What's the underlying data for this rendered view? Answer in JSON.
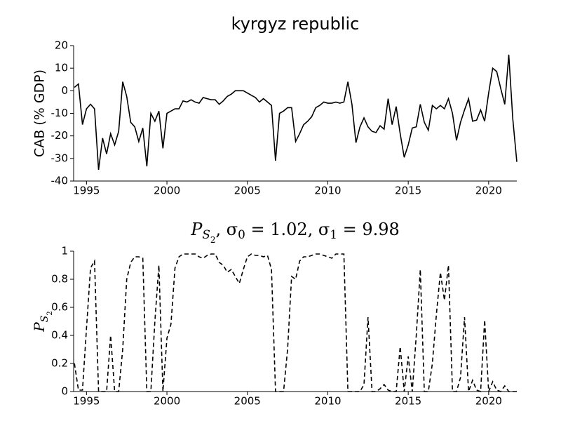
{
  "chart_data": [
    {
      "type": "line",
      "title": "kyrgyz republic",
      "ylabel": "CAB (% GDP)",
      "color": "#000000",
      "dashed": false,
      "x": [
        1994.25,
        1994.5,
        1994.75,
        1995,
        1995.25,
        1995.5,
        1995.75,
        1996,
        1996.25,
        1996.5,
        1996.75,
        1997,
        1997.25,
        1997.5,
        1997.75,
        1998,
        1998.25,
        1998.5,
        1998.75,
        1999,
        1999.25,
        1999.5,
        1999.75,
        2000,
        2000.25,
        2000.5,
        2000.75,
        2001,
        2001.25,
        2001.5,
        2001.75,
        2002,
        2002.25,
        2002.5,
        2002.75,
        2003,
        2003.25,
        2003.5,
        2003.75,
        2004,
        2004.25,
        2004.5,
        2004.75,
        2005,
        2005.25,
        2005.5,
        2005.75,
        2006,
        2006.25,
        2006.5,
        2006.75,
        2007,
        2007.25,
        2007.5,
        2007.75,
        2008,
        2008.25,
        2008.5,
        2008.75,
        2009,
        2009.25,
        2009.5,
        2009.75,
        2010,
        2010.25,
        2010.5,
        2010.75,
        2011,
        2011.25,
        2011.5,
        2011.75,
        2012,
        2012.25,
        2012.5,
        2012.75,
        2013,
        2013.25,
        2013.5,
        2013.75,
        2014,
        2014.25,
        2014.5,
        2014.75,
        2015,
        2015.25,
        2015.5,
        2015.75,
        2016,
        2016.25,
        2016.5,
        2016.75,
        2017,
        2017.25,
        2017.5,
        2017.75,
        2018,
        2018.25,
        2018.5,
        2018.75,
        2019,
        2019.25,
        2019.5,
        2019.75,
        2020,
        2020.25,
        2020.5,
        2020.75,
        2021,
        2021.25,
        2021.5,
        2021.75
      ],
      "values": [
        1.5,
        3,
        -15,
        -8,
        -6,
        -8,
        -35,
        -21,
        -28,
        -19,
        -24,
        -18,
        4,
        -2.5,
        -14,
        -16,
        -22.5,
        -16.5,
        -33.5,
        -10,
        -13.5,
        -9,
        -25.5,
        -10,
        -9,
        -8,
        -8,
        -4.5,
        -5,
        -4,
        -5,
        -5.5,
        -3,
        -3.5,
        -4,
        -4,
        -6,
        -4.5,
        -2.5,
        -1.5,
        0,
        0,
        0,
        -1,
        -2,
        -3,
        -5,
        -3.5,
        -5,
        -6.5,
        -31,
        -10,
        -9,
        -7.5,
        -7.5,
        -22.5,
        -19,
        -15,
        -13.5,
        -11.5,
        -7.5,
        -6.5,
        -5,
        -5.5,
        -5.5,
        -5,
        -5.5,
        -5,
        4,
        -6,
        -23,
        -16,
        -12,
        -16,
        -18,
        -18.5,
        -15.5,
        -17,
        -3.5,
        -15,
        -7,
        -19,
        -29.5,
        -24,
        -16.5,
        -16,
        -6,
        -14,
        -17.5,
        -6.5,
        -8,
        -6.5,
        -8,
        -3.5,
        -10,
        -22,
        -14,
        -8.5,
        -3.5,
        -13.5,
        -13,
        -8.5,
        -13.5,
        -1,
        10,
        8.5,
        1,
        -6,
        16,
        -12.5,
        -31.5
      ],
      "xlim": [
        1994.2,
        2021.75
      ],
      "xticks": [
        1995,
        2000,
        2005,
        2010,
        2015,
        2020
      ],
      "ylim": [
        -40,
        20
      ],
      "yticks": [
        -40,
        -30,
        -20,
        -10,
        0,
        10,
        20
      ]
    },
    {
      "type": "line",
      "title": [
        "P",
        "S",
        "2",
        ", σ",
        "0",
        " = 1.02, σ",
        "1",
        " = 9.98"
      ],
      "ylabel": [
        "P",
        "S",
        "2"
      ],
      "color": "#000000",
      "dashed": true,
      "x": [
        1994.25,
        1994.5,
        1994.75,
        1995,
        1995.25,
        1995.5,
        1995.75,
        1996,
        1996.25,
        1996.5,
        1996.75,
        1997,
        1997.25,
        1997.5,
        1997.75,
        1998,
        1998.25,
        1998.5,
        1998.75,
        1999,
        1999.25,
        1999.5,
        1999.75,
        2000,
        2000.25,
        2000.5,
        2000.75,
        2001,
        2001.25,
        2001.5,
        2001.75,
        2002,
        2002.25,
        2002.5,
        2002.75,
        2003,
        2003.25,
        2003.5,
        2003.75,
        2004,
        2004.25,
        2004.5,
        2004.75,
        2005,
        2005.25,
        2005.5,
        2005.75,
        2006,
        2006.25,
        2006.5,
        2006.75,
        2007,
        2007.25,
        2007.5,
        2007.75,
        2008,
        2008.25,
        2008.5,
        2008.75,
        2009,
        2009.25,
        2009.5,
        2009.75,
        2010,
        2010.25,
        2010.5,
        2010.75,
        2011,
        2011.25,
        2011.5,
        2011.75,
        2012,
        2012.25,
        2012.5,
        2012.75,
        2013,
        2013.25,
        2013.5,
        2013.75,
        2014,
        2014.25,
        2014.5,
        2014.75,
        2015,
        2015.25,
        2015.5,
        2015.75,
        2016,
        2016.25,
        2016.5,
        2016.75,
        2017,
        2017.25,
        2017.5,
        2017.75,
        2018,
        2018.25,
        2018.5,
        2018.75,
        2019,
        2019.25,
        2019.5,
        2019.75,
        2020,
        2020.25,
        2020.5,
        2020.75,
        2021,
        2021.25,
        2021.5,
        2021.75
      ],
      "values": [
        0.2,
        0.01,
        0.01,
        0.45,
        0.88,
        0.93,
        0,
        0,
        0,
        0.4,
        0,
        0,
        0.3,
        0.8,
        0.92,
        0.96,
        0.96,
        0.95,
        0,
        0,
        0.5,
        0.9,
        0,
        0.38,
        0.48,
        0.88,
        0.96,
        0.98,
        0.98,
        0.98,
        0.98,
        0.96,
        0.95,
        0.97,
        0.98,
        0.98,
        0.92,
        0.9,
        0.85,
        0.87,
        0.82,
        0.77,
        0.87,
        0.96,
        0.98,
        0.97,
        0.97,
        0.96,
        0.97,
        0.87,
        0,
        0,
        0,
        0.3,
        0.82,
        0.8,
        0.93,
        0.96,
        0.96,
        0.97,
        0.98,
        0.98,
        0.97,
        0.96,
        0.95,
        0.98,
        0.98,
        0.98,
        0,
        0,
        0,
        0,
        0.05,
        0.53,
        0,
        0,
        0.02,
        0.05,
        0.01,
        0,
        0,
        0.32,
        0,
        0.25,
        0,
        0.4,
        0.87,
        0,
        0,
        0.2,
        0.55,
        0.85,
        0.65,
        0.9,
        0,
        0,
        0.1,
        0.53,
        0,
        0.08,
        0.01,
        0,
        0.51,
        0,
        0.07,
        0.01,
        0,
        0.04,
        0,
        0,
        0
      ],
      "xlim": [
        1994.2,
        2021.75
      ],
      "xticks": [
        1995,
        2000,
        2005,
        2010,
        2015,
        2020
      ],
      "ylim": [
        0,
        1
      ],
      "yticks": [
        0,
        0.2,
        0.4,
        0.6,
        0.8,
        1
      ]
    }
  ]
}
